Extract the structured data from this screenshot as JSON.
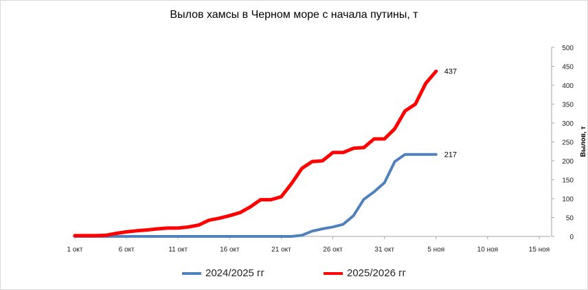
{
  "chart_data": {
    "type": "line",
    "title": "Вылов хамсы в Черном море с начала путины, т",
    "ylabel": "Вылов, т",
    "ylim": [
      0,
      500
    ],
    "yticks": [
      "0",
      "50",
      "100",
      "150",
      "200",
      "250",
      "300",
      "350",
      "400",
      "450",
      "500"
    ],
    "xlim": [
      1,
      46
    ],
    "xticks": [
      {
        "day": 1,
        "label": "1 окт"
      },
      {
        "day": 6,
        "label": "6 окт"
      },
      {
        "day": 11,
        "label": "11 окт"
      },
      {
        "day": 16,
        "label": "16 окт"
      },
      {
        "day": 21,
        "label": "21 окт"
      },
      {
        "day": 26,
        "label": "26 окт"
      },
      {
        "day": 31,
        "label": "31 окт"
      },
      {
        "day": 36,
        "label": "5 ноя"
      },
      {
        "day": 41,
        "label": "10 ноя"
      },
      {
        "day": 46,
        "label": "15 ноя"
      }
    ],
    "grid": false,
    "legend_position": "bottom",
    "series": [
      {
        "name": "2024/2025 гг",
        "color": "#4f81bd",
        "end_label": "217",
        "points": [
          [
            1,
            0
          ],
          [
            2,
            0
          ],
          [
            3,
            0
          ],
          [
            4,
            0
          ],
          [
            5,
            0
          ],
          [
            6,
            0
          ],
          [
            7,
            0
          ],
          [
            8,
            0
          ],
          [
            9,
            0
          ],
          [
            10,
            0
          ],
          [
            11,
            0
          ],
          [
            12,
            0
          ],
          [
            13,
            0
          ],
          [
            14,
            0
          ],
          [
            15,
            0
          ],
          [
            16,
            0
          ],
          [
            17,
            0
          ],
          [
            18,
            0
          ],
          [
            19,
            0
          ],
          [
            20,
            0
          ],
          [
            21,
            0
          ],
          [
            22,
            0
          ],
          [
            23,
            3
          ],
          [
            24,
            14
          ],
          [
            25,
            20
          ],
          [
            26,
            25
          ],
          [
            27,
            32
          ],
          [
            28,
            55
          ],
          [
            29,
            98
          ],
          [
            30,
            118
          ],
          [
            31,
            142
          ],
          [
            32,
            198
          ],
          [
            33,
            217
          ],
          [
            34,
            217
          ],
          [
            35,
            217
          ],
          [
            36,
            217
          ]
        ]
      },
      {
        "name": "2025/2026 гг",
        "color": "#ff0000",
        "end_label": "437",
        "points": [
          [
            1,
            2
          ],
          [
            2,
            2
          ],
          [
            3,
            2
          ],
          [
            4,
            3
          ],
          [
            5,
            8
          ],
          [
            6,
            12
          ],
          [
            7,
            15
          ],
          [
            8,
            17
          ],
          [
            9,
            20
          ],
          [
            10,
            22
          ],
          [
            11,
            22
          ],
          [
            12,
            25
          ],
          [
            13,
            30
          ],
          [
            14,
            43
          ],
          [
            15,
            48
          ],
          [
            16,
            55
          ],
          [
            17,
            63
          ],
          [
            18,
            78
          ],
          [
            19,
            97
          ],
          [
            20,
            97
          ],
          [
            21,
            105
          ],
          [
            22,
            140
          ],
          [
            23,
            180
          ],
          [
            24,
            198
          ],
          [
            25,
            200
          ],
          [
            26,
            222
          ],
          [
            27,
            222
          ],
          [
            28,
            233
          ],
          [
            29,
            235
          ],
          [
            30,
            258
          ],
          [
            31,
            258
          ],
          [
            32,
            285
          ],
          [
            33,
            332
          ],
          [
            34,
            350
          ],
          [
            35,
            405
          ],
          [
            36,
            437
          ]
        ]
      }
    ]
  }
}
